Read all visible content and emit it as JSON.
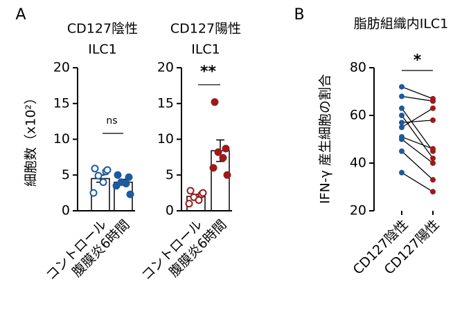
{
  "panels": [
    "A",
    "B"
  ],
  "chart_data": [
    {
      "type": "bar",
      "title": [
        "CD127陰性",
        "ILC1"
      ],
      "ylabel": "細胞数（x10²）",
      "categories": [
        "コントロール",
        "腹膜炎6時間"
      ],
      "values": [
        4.5,
        4.0
      ],
      "errors": [
        0.5,
        0.4
      ],
      "points": [
        [
          5.9,
          5.5,
          4.9,
          4.0,
          2.5,
          5.7
        ],
        [
          5.0,
          4.7,
          4.0,
          3.8,
          3.5,
          2.3
        ]
      ],
      "color": "#1d5a9e",
      "marker_filled": [
        false,
        true
      ],
      "ylim": [
        0,
        20
      ],
      "yticks": [
        0,
        5,
        10,
        15,
        20
      ],
      "annotation": "ns"
    },
    {
      "type": "bar",
      "title": [
        "CD127陽性",
        "ILC1"
      ],
      "categories": [
        "コントロール",
        "腹膜炎6時間"
      ],
      "values": [
        2.0,
        8.4
      ],
      "errors": [
        0.3,
        1.5
      ],
      "points": [
        [
          2.8,
          2.3,
          1.9,
          1.5,
          1.0,
          2.5
        ],
        [
          15.2,
          8.7,
          8.2,
          7.4,
          6.0,
          5.0
        ]
      ],
      "color": "#9b1b1b",
      "marker_filled": [
        false,
        true
      ],
      "ylim": [
        0,
        20
      ],
      "yticks": [
        0,
        5,
        10,
        15,
        20
      ],
      "annotation": "**"
    },
    {
      "type": "paired",
      "title": "脂肪組織内ILC1",
      "ylabel": "IFN-γ 産生細胞の割合",
      "categories": [
        "CD127陰性",
        "CD127陽性"
      ],
      "series": [
        {
          "values": [
            72,
            67
          ]
        },
        {
          "values": [
            68,
            66
          ]
        },
        {
          "values": [
            63,
            45
          ]
        },
        {
          "values": [
            60,
            42
          ]
        },
        {
          "values": [
            57,
            58
          ]
        },
        {
          "values": [
            55,
            63
          ]
        },
        {
          "values": [
            51,
            46
          ]
        },
        {
          "values": [
            50,
            40
          ]
        },
        {
          "values": [
            45,
            33
          ]
        },
        {
          "values": [
            36,
            28
          ]
        }
      ],
      "point_colors": [
        "#1d5a9e",
        "#9b1b1b"
      ],
      "line_color": "#000000",
      "ylim": [
        20,
        80
      ],
      "yticks": [
        20,
        40,
        60,
        80
      ],
      "annotation": "*"
    }
  ]
}
